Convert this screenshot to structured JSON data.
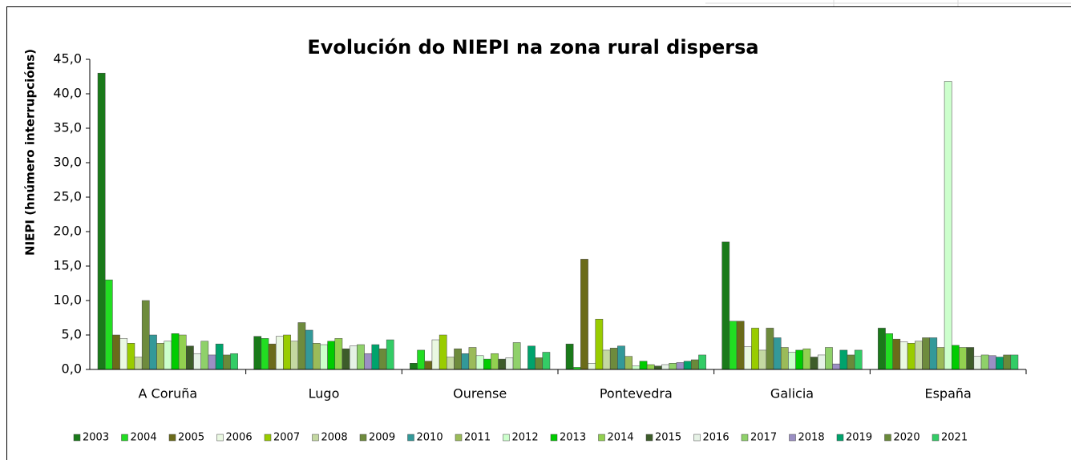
{
  "chart_data": {
    "type": "bar",
    "title": "Evolución do NIEPI na zona rural dispersa",
    "y_label": "NIEPI (hnúmero interrupcións)",
    "categories": [
      "A Coruña",
      "Lugo",
      "Ourense",
      "Pontevedra",
      "Galicia",
      "España"
    ],
    "ylim": [
      0,
      45
    ],
    "yticks": [
      {
        "value": 0,
        "label": "0,0"
      },
      {
        "value": 5,
        "label": "5,0"
      },
      {
        "value": 10,
        "label": "10,0"
      },
      {
        "value": 15,
        "label": "15,0"
      },
      {
        "value": 20,
        "label": "20,0"
      },
      {
        "value": 25,
        "label": "25,0"
      },
      {
        "value": 30,
        "label": "30,0"
      },
      {
        "value": 35,
        "label": "35,0"
      },
      {
        "value": 40,
        "label": "40,0"
      },
      {
        "value": 45,
        "label": "45,0"
      }
    ],
    "legend": "bottom",
    "series": [
      {
        "name": "2003",
        "color": "#1a7a1a",
        "values": [
          43.0,
          4.8,
          0.9,
          3.7,
          18.5,
          6.0
        ]
      },
      {
        "name": "2004",
        "color": "#22dd22",
        "values": [
          13.0,
          4.5,
          2.8,
          0.3,
          7.0,
          5.2
        ]
      },
      {
        "name": "2005",
        "color": "#6b6b1a",
        "values": [
          5.0,
          3.7,
          1.2,
          16.0,
          7.0,
          4.4
        ]
      },
      {
        "name": "2006",
        "color": "#eaf8e2",
        "values": [
          4.5,
          4.8,
          4.3,
          0.9,
          3.3,
          4.0
        ]
      },
      {
        "name": "2007",
        "color": "#99cc00",
        "values": [
          3.8,
          5.0,
          5.0,
          7.3,
          6.0,
          3.8
        ]
      },
      {
        "name": "2008",
        "color": "#c4d8a2",
        "values": [
          1.8,
          4.1,
          1.8,
          2.8,
          2.8,
          4.1
        ]
      },
      {
        "name": "2009",
        "color": "#6e8b3d",
        "values": [
          10.0,
          6.8,
          3.0,
          3.1,
          6.0,
          4.6
        ]
      },
      {
        "name": "2010",
        "color": "#339999",
        "values": [
          5.0,
          5.7,
          2.3,
          3.4,
          4.6,
          4.6
        ]
      },
      {
        "name": "2011",
        "color": "#9bbb59",
        "values": [
          3.8,
          3.8,
          3.2,
          1.9,
          3.2,
          3.2
        ]
      },
      {
        "name": "2012",
        "color": "#ccffcc",
        "values": [
          4.1,
          3.6,
          2.0,
          0.5,
          2.5,
          41.8
        ]
      },
      {
        "name": "2013",
        "color": "#00cc00",
        "values": [
          5.2,
          4.1,
          1.5,
          1.2,
          2.8,
          3.5
        ]
      },
      {
        "name": "2014",
        "color": "#92d050",
        "values": [
          5.0,
          4.5,
          2.3,
          0.7,
          3.0,
          3.2
        ]
      },
      {
        "name": "2015",
        "color": "#3d5c2a",
        "values": [
          3.4,
          3.0,
          1.5,
          0.5,
          1.8,
          3.2
        ]
      },
      {
        "name": "2016",
        "color": "#e6f2e6",
        "values": [
          2.3,
          3.4,
          1.7,
          0.7,
          2.1,
          1.9
        ]
      },
      {
        "name": "2017",
        "color": "#8fd16a",
        "values": [
          4.1,
          3.6,
          3.9,
          0.9,
          3.2,
          2.1
        ]
      },
      {
        "name": "2018",
        "color": "#9b8fc4",
        "values": [
          2.1,
          2.3,
          0.1,
          1.0,
          0.8,
          2.0
        ]
      },
      {
        "name": "2019",
        "color": "#00a36c",
        "values": [
          3.7,
          3.6,
          3.4,
          1.2,
          2.8,
          1.8
        ]
      },
      {
        "name": "2020",
        "color": "#6a8a3a",
        "values": [
          2.1,
          3.0,
          1.7,
          1.4,
          2.1,
          2.1
        ]
      },
      {
        "name": "2021",
        "color": "#33cc66",
        "values": [
          2.3,
          4.3,
          2.5,
          2.1,
          2.8,
          2.1
        ]
      }
    ]
  }
}
